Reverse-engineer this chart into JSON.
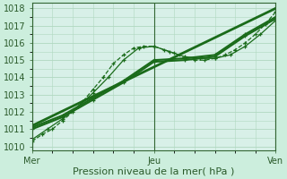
{
  "xlabel": "Pression niveau de la mer( hPa )",
  "bg_color": "#cceedd",
  "plot_bg": "#d8f0e8",
  "grid_color": "#b0d8c0",
  "line_color": "#1a6b1a",
  "xlim": [
    0,
    48
  ],
  "ylim": [
    1009.8,
    1018.3
  ],
  "yticks": [
    1010,
    1011,
    1012,
    1013,
    1014,
    1015,
    1016,
    1017,
    1018
  ],
  "xtick_positions": [
    0,
    24,
    48
  ],
  "xtick_labels": [
    "Mer",
    "Jeu",
    "Ven"
  ],
  "series": [
    {
      "x": [
        0,
        2,
        4,
        6,
        8,
        10,
        12,
        14,
        16,
        18,
        20,
        22,
        24,
        26,
        28,
        30,
        32,
        34,
        36,
        38,
        40,
        42,
        44,
        46,
        48
      ],
      "y": [
        1010.3,
        1010.7,
        1011.0,
        1011.5,
        1012.0,
        1012.6,
        1013.3,
        1014.0,
        1014.8,
        1015.3,
        1015.7,
        1015.8,
        1015.8,
        1015.6,
        1015.4,
        1015.1,
        1015.0,
        1015.0,
        1015.1,
        1015.3,
        1015.6,
        1016.0,
        1016.5,
        1017.1,
        1017.8
      ],
      "lw": 0.9,
      "ls": "--",
      "ms": 3.5,
      "marker": "+"
    },
    {
      "x": [
        0,
        3,
        6,
        9,
        12,
        15,
        18,
        21,
        24,
        27,
        30,
        33,
        36,
        39,
        42,
        45,
        48
      ],
      "y": [
        1010.4,
        1011.0,
        1011.6,
        1012.3,
        1013.1,
        1014.0,
        1015.0,
        1015.7,
        1015.8,
        1015.5,
        1015.2,
        1015.1,
        1015.1,
        1015.3,
        1015.8,
        1016.5,
        1017.3
      ],
      "lw": 0.9,
      "ls": "-",
      "ms": 3.5,
      "marker": "+"
    },
    {
      "x": [
        0,
        6,
        12,
        18,
        24,
        30,
        36,
        42,
        48
      ],
      "y": [
        1011.1,
        1011.8,
        1012.8,
        1013.8,
        1015.0,
        1015.1,
        1015.3,
        1016.5,
        1017.5
      ],
      "lw": 1.5,
      "ls": "-",
      "ms": 3.5,
      "marker": "+"
    },
    {
      "x": [
        0,
        6,
        12,
        18,
        24,
        30,
        36,
        42,
        48
      ],
      "y": [
        1011.0,
        1011.7,
        1012.7,
        1013.7,
        1014.9,
        1015.0,
        1015.2,
        1016.4,
        1017.4
      ],
      "lw": 1.5,
      "ls": "-",
      "ms": 3.5,
      "marker": "+"
    },
    {
      "x": [
        0,
        48
      ],
      "y": [
        1011.2,
        1018.0
      ],
      "lw": 2.0,
      "ls": "-",
      "ms": 0,
      "marker": null
    }
  ]
}
